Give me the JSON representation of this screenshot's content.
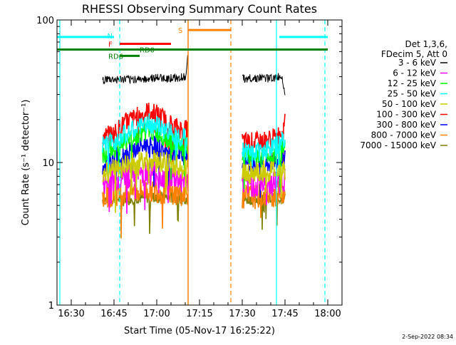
{
  "chart_data": {
    "type": "line",
    "title": "RHESSI Observing Summary Count Rates",
    "xlabel": "Start Time (05-Nov-17 16:25:22)",
    "ylabel": "Count Rate (s⁻¹ detector⁻¹)",
    "yscale": "log",
    "ylim": [
      1,
      100
    ],
    "xlim": [
      "16:25",
      "18:05"
    ],
    "x_ticks": [
      "16:30",
      "16:45",
      "17:00",
      "17:15",
      "17:30",
      "17:45",
      "18:00"
    ],
    "y_ticks": [
      "1",
      "10",
      "100"
    ],
    "timestamp": "2-Sep-2022 08:34",
    "legend": {
      "header": [
        "Det 1,3,6,",
        "FDecim 5, Att 0"
      ],
      "placement": "right",
      "entries": [
        {
          "label": "3 - 6 keV",
          "color": "#000000"
        },
        {
          "label": "6 - 12 keV",
          "color": "#ff00ff"
        },
        {
          "label": "12 - 25 keV",
          "color": "#00ff00"
        },
        {
          "label": "25 - 50 keV",
          "color": "#00ffff"
        },
        {
          "label": "50 - 100 keV",
          "color": "#cccc00"
        },
        {
          "label": "100 - 300 keV",
          "color": "#ff0000"
        },
        {
          "label": "300 - 800 keV",
          "color": "#0000ff"
        },
        {
          "label": "800 - 7000 keV",
          "color": "#ff8000"
        },
        {
          "label": "7000 - 15000 keV",
          "color": "#808000"
        }
      ]
    },
    "flag_labels": {
      "N": "N",
      "F": "F",
      "RD0": "RD0",
      "RD6": "RD6",
      "S": "S"
    },
    "flag_bars": [
      {
        "id": "N",
        "color": "#00ffff",
        "level": 76,
        "segments": [
          [
            "16:25",
            "16:45"
          ],
          [
            "17:43",
            "18:00"
          ]
        ]
      },
      {
        "id": "F",
        "color": "#ff0000",
        "level": 68,
        "segments": [
          [
            "16:47",
            "17:05"
          ]
        ]
      },
      {
        "id": "RD0",
        "color": "#008000",
        "level": 62,
        "segments": [
          [
            "16:25",
            "18:00"
          ]
        ]
      },
      {
        "id": "RD6",
        "color": "#008000",
        "level": 56,
        "segments": [
          [
            "16:47",
            "16:54"
          ]
        ]
      },
      {
        "id": "S",
        "color": "#ff8000",
        "level": 85,
        "segments": [
          [
            "17:11",
            "17:26"
          ]
        ]
      }
    ],
    "night_lines": {
      "color": "#00ffff",
      "solid": [
        "16:26",
        "17:42"
      ],
      "dashed": [
        "16:47",
        "17:59"
      ]
    },
    "saa_lines": {
      "color": "#ff8000",
      "solid": [
        "17:11"
      ],
      "dashed": [
        "17:26"
      ]
    },
    "data_gap": [
      "17:12",
      "17:30"
    ],
    "segments": [
      [
        "16:41",
        "17:11"
      ],
      [
        "17:30",
        "17:45"
      ]
    ],
    "series": [
      {
        "name": "3 - 6 keV",
        "color": "#000000",
        "times": [
          "16:41",
          "16:50",
          "16:58",
          "17:05",
          "17:10",
          "17:11",
          "17:30",
          "17:40",
          "17:44",
          "17:45"
        ],
        "values": [
          38,
          38,
          39,
          39,
          40,
          55,
          39,
          39,
          40,
          30
        ]
      },
      {
        "name": "100 - 300 keV",
        "color": "#ff0000",
        "times": [
          "16:41",
          "16:45",
          "16:49",
          "16:53",
          "16:57",
          "17:00",
          "17:03",
          "17:06",
          "17:09",
          "17:11",
          "17:30",
          "17:36",
          "17:42",
          "17:44",
          "17:45"
        ],
        "values": [
          15,
          16,
          19,
          21,
          23,
          22,
          20,
          18,
          17,
          17,
          14,
          14,
          15,
          17,
          21
        ]
      },
      {
        "name": "25 - 50 keV",
        "color": "#00ffff",
        "times": [
          "16:41",
          "16:45",
          "16:49",
          "16:53",
          "16:57",
          "17:00",
          "17:03",
          "17:06",
          "17:09",
          "17:11",
          "17:30",
          "17:36",
          "17:42",
          "17:44",
          "17:45"
        ],
        "values": [
          13,
          14,
          16,
          17,
          19,
          18,
          17,
          16,
          15,
          15,
          12,
          12,
          13,
          14,
          14
        ]
      },
      {
        "name": "12 - 25 keV",
        "color": "#00ff00",
        "times": [
          "16:41",
          "16:45",
          "16:49",
          "16:53",
          "16:57",
          "17:00",
          "17:03",
          "17:06",
          "17:09",
          "17:11",
          "17:30",
          "17:36",
          "17:42",
          "17:44",
          "17:45"
        ],
        "values": [
          11.5,
          12.5,
          14,
          15.5,
          17,
          16,
          15,
          14,
          13,
          13,
          11,
          11,
          11.5,
          12,
          12
        ]
      },
      {
        "name": "300 - 800 keV",
        "color": "#0000ff",
        "times": [
          "16:41",
          "16:45",
          "16:49",
          "16:53",
          "16:57",
          "17:00",
          "17:03",
          "17:06",
          "17:09",
          "17:11",
          "17:30",
          "17:36",
          "17:42",
          "17:44",
          "17:45"
        ],
        "values": [
          9.5,
          10.5,
          11.5,
          12.5,
          13.5,
          13,
          12,
          11.5,
          11,
          11,
          9.5,
          9.5,
          10,
          10.5,
          11
        ]
      },
      {
        "name": "50 - 100 keV",
        "color": "#cccc00",
        "times": [
          "16:41",
          "16:45",
          "16:49",
          "16:53",
          "16:57",
          "17:00",
          "17:03",
          "17:06",
          "17:09",
          "17:11",
          "17:30",
          "17:36",
          "17:42",
          "17:44",
          "17:45"
        ],
        "values": [
          8.5,
          9,
          9.5,
          10,
          10.5,
          10.2,
          10,
          9.5,
          9,
          9,
          8.5,
          8.5,
          8.8,
          9,
          9
        ]
      },
      {
        "name": "6 - 12 keV",
        "color": "#ff00ff",
        "times": [
          "16:41",
          "16:45",
          "16:49",
          "16:53",
          "16:57",
          "17:00",
          "17:03",
          "17:06",
          "17:09",
          "17:11",
          "17:30",
          "17:36",
          "17:42",
          "17:44",
          "17:45"
        ],
        "values": [
          7,
          7.5,
          8,
          8.3,
          8.5,
          8.3,
          8,
          7.8,
          7.5,
          7.5,
          7,
          7,
          7.2,
          7.4,
          7.5
        ]
      },
      {
        "name": "800 - 7000 keV",
        "color": "#ff8000",
        "times": [
          "16:41",
          "16:45",
          "16:49",
          "16:53",
          "16:57",
          "17:00",
          "17:03",
          "17:06",
          "17:09",
          "17:11",
          "17:30",
          "17:36",
          "17:42",
          "17:44",
          "17:45"
        ],
        "values": [
          5.8,
          6,
          6.2,
          6.3,
          6.5,
          6.4,
          6.2,
          6.1,
          6,
          6,
          5.8,
          5.8,
          6,
          6.2,
          6.5
        ]
      },
      {
        "name": "7000 - 15000 keV",
        "color": "#808000",
        "times": [
          "16:41",
          "16:50",
          "17:00",
          "17:11",
          "17:30",
          "17:45"
        ],
        "values": [
          5.5,
          5.6,
          5.7,
          5.6,
          5.5,
          5.6
        ]
      }
    ]
  }
}
